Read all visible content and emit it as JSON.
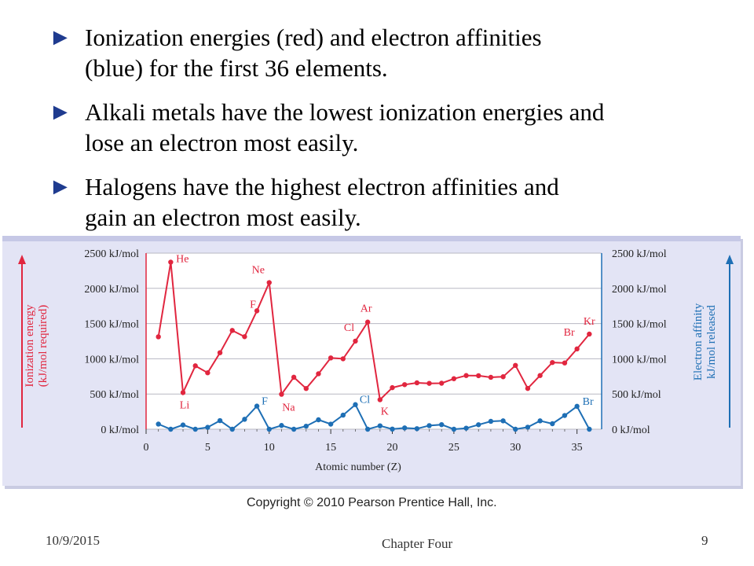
{
  "bullets": [
    {
      "line1": "Ionization energies (red) and electron affinities",
      "line2": "(blue) for the first 36 elements."
    },
    {
      "line1": "Alkali metals have the lowest ionization energies and",
      "line2": "lose an electron most easily."
    },
    {
      "line1": "Halogens have the highest electron affinities and",
      "line2": "gain an electron most easily."
    }
  ],
  "bullet_icon": "right-pointing-triangle-icon",
  "colors": {
    "accent_bullet": "#1f3b8f",
    "ionization": "#e1263f",
    "affinity": "#1e6fb5",
    "panel": "#e3e4f5"
  },
  "chart_data": {
    "type": "line",
    "xlabel": "Atomic number (Z)",
    "ylabel_left": [
      "Ionization energy",
      "(kJ/mol required)"
    ],
    "ylabel_right": [
      "Electron affinity",
      "kJ/mol released"
    ],
    "xlim": [
      0,
      37
    ],
    "ylim": [
      0,
      2500
    ],
    "x_ticks": [
      0,
      5,
      10,
      15,
      20,
      25,
      30,
      35
    ],
    "y_ticks": [
      0,
      500,
      1000,
      1500,
      2000,
      2500
    ],
    "y_tick_labels": [
      "0 kJ/mol",
      "500 kJ/mol",
      "1000 kJ/mol",
      "1500 kJ/mol",
      "2000 kJ/mol",
      "2500 kJ/mol"
    ],
    "grid": true,
    "series": [
      {
        "key": "ionization",
        "color": "#e1263f",
        "x": [
          1,
          2,
          3,
          4,
          5,
          6,
          7,
          8,
          9,
          10,
          11,
          12,
          13,
          14,
          15,
          16,
          17,
          18,
          19,
          20,
          21,
          22,
          23,
          24,
          25,
          26,
          27,
          28,
          29,
          30,
          31,
          32,
          33,
          34,
          35,
          36
        ],
        "values": [
          1312,
          2372,
          520,
          900,
          801,
          1086,
          1402,
          1314,
          1681,
          2081,
          496,
          738,
          578,
          787,
          1012,
          1000,
          1251,
          1521,
          419,
          590,
          633,
          659,
          651,
          653,
          717,
          762,
          760,
          737,
          745,
          906,
          579,
          762,
          947,
          941,
          1140,
          1351
        ]
      },
      {
        "key": "affinity",
        "color": "#1e6fb5",
        "x": [
          1,
          2,
          3,
          4,
          5,
          6,
          7,
          8,
          9,
          10,
          11,
          12,
          13,
          14,
          15,
          16,
          17,
          18,
          19,
          20,
          21,
          22,
          23,
          24,
          25,
          26,
          27,
          28,
          29,
          30,
          31,
          32,
          33,
          34,
          35,
          36
        ],
        "values": [
          73,
          0,
          60,
          0,
          27,
          122,
          0,
          141,
          328,
          0,
          53,
          0,
          43,
          134,
          72,
          200,
          349,
          0,
          48,
          2,
          18,
          8,
          51,
          65,
          0,
          15,
          64,
          112,
          119,
          0,
          29,
          119,
          78,
          195,
          325,
          0
        ]
      }
    ],
    "annotations": [
      {
        "text": "He",
        "x": 2,
        "series": "ionization"
      },
      {
        "text": "Li",
        "x": 3,
        "series": "ionization"
      },
      {
        "text": "F",
        "x": 9,
        "series": "ionization"
      },
      {
        "text": "Ne",
        "x": 10,
        "series": "ionization"
      },
      {
        "text": "Na",
        "x": 11,
        "series": "ionization"
      },
      {
        "text": "Cl",
        "x": 17,
        "series": "ionization"
      },
      {
        "text": "Ar",
        "x": 18,
        "series": "ionization"
      },
      {
        "text": "K",
        "x": 19,
        "series": "ionization"
      },
      {
        "text": "Br",
        "x": 35,
        "series": "ionization"
      },
      {
        "text": "Kr",
        "x": 36,
        "series": "ionization"
      },
      {
        "text": "F",
        "x": 9,
        "series": "affinity"
      },
      {
        "text": "Cl",
        "x": 17,
        "series": "affinity"
      },
      {
        "text": "Br",
        "x": 35,
        "series": "affinity"
      }
    ]
  },
  "copyright": "Copyright © 2010 Pearson Prentice Hall, Inc.",
  "footer": {
    "date": "10/9/2015",
    "chapter": "Chapter Four",
    "page": "9"
  }
}
